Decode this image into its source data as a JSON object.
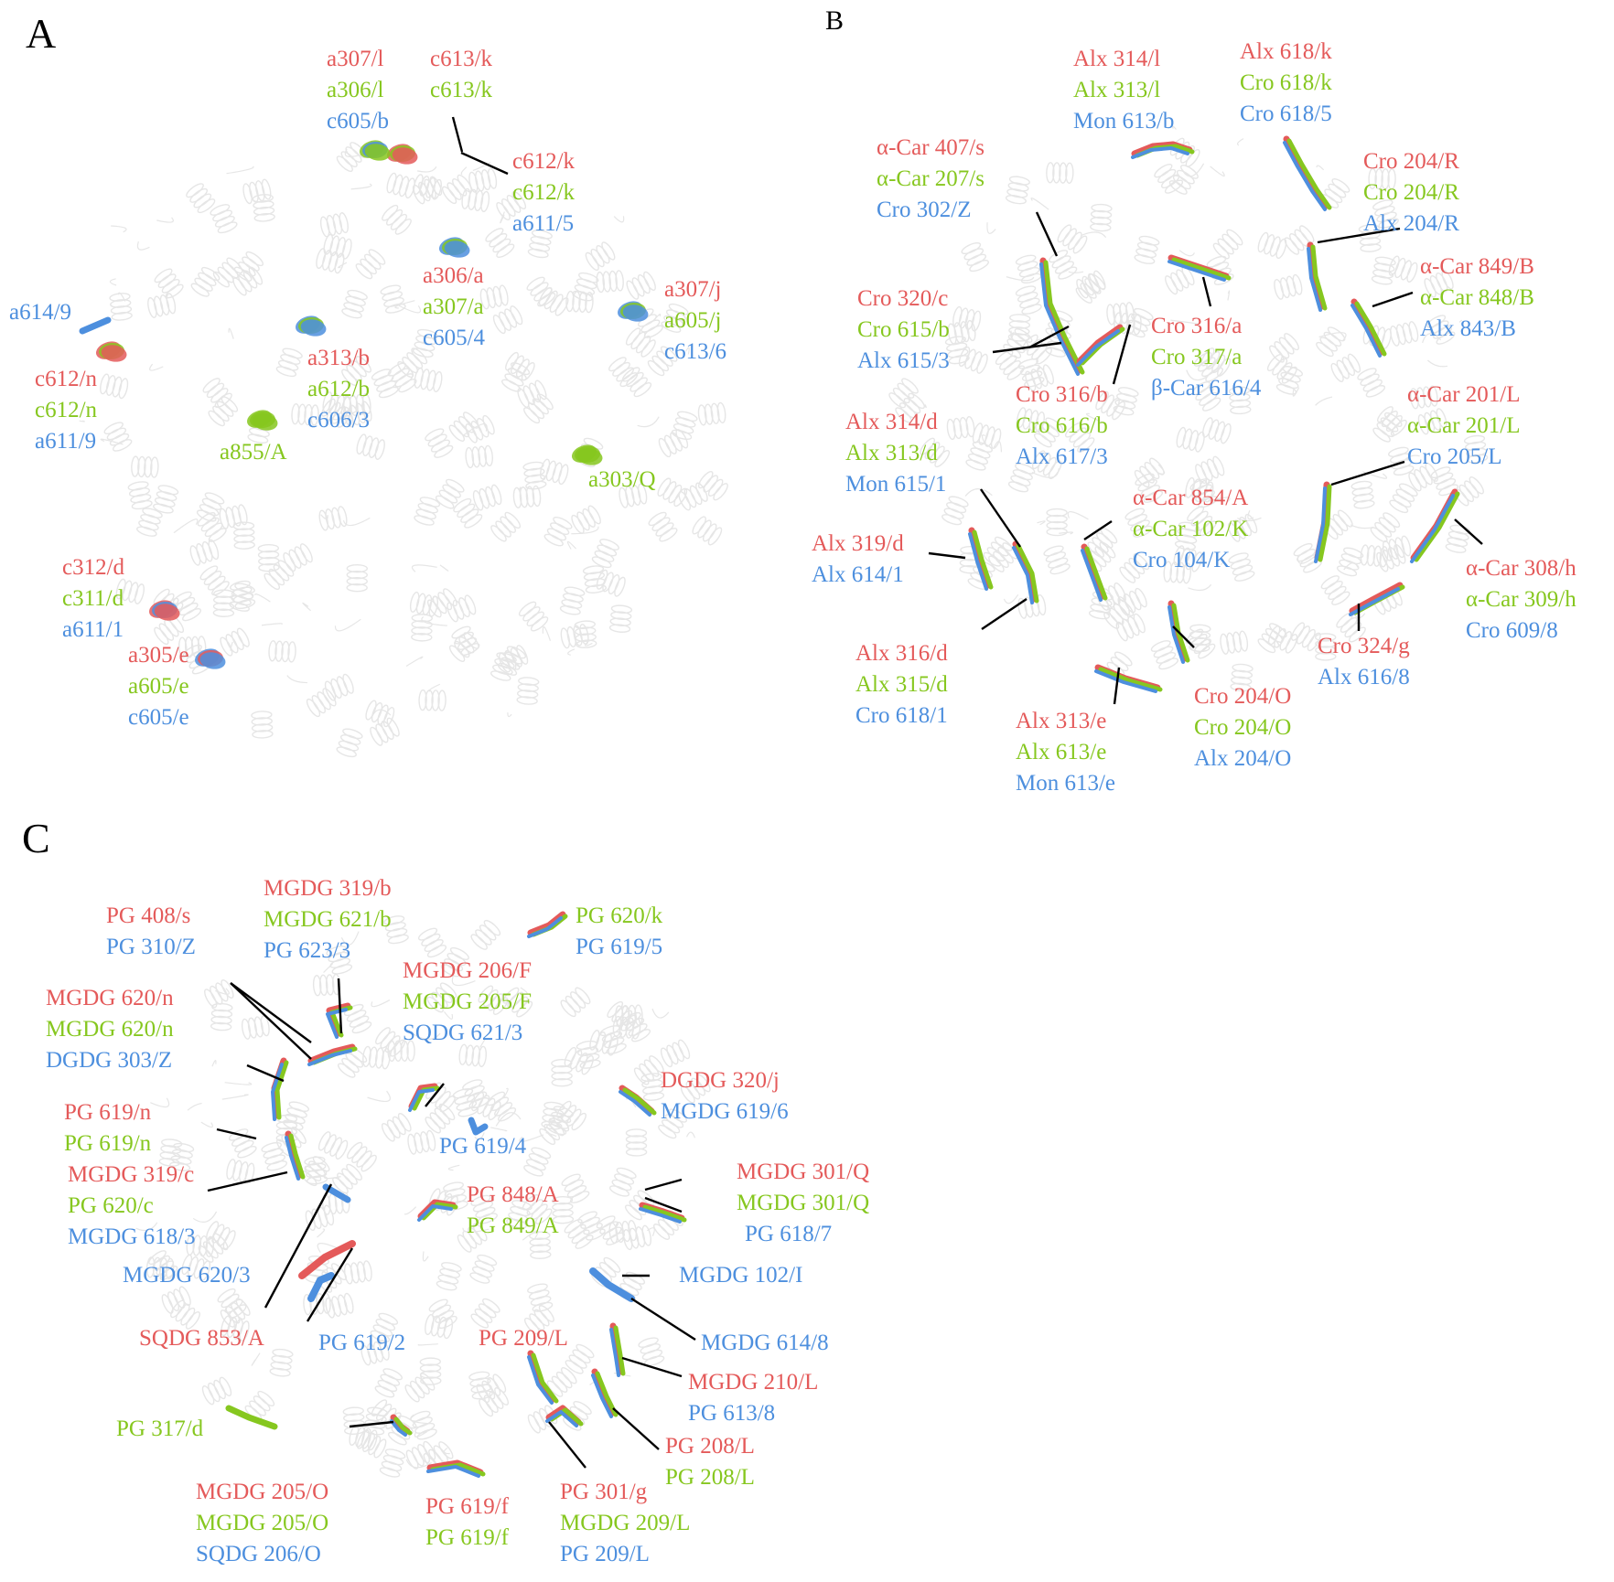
{
  "colors": {
    "red": "#e45a5a",
    "green": "#86c71f",
    "blue": "#4d8fde",
    "leader": "#000000",
    "background_structure": "#e6e6e6"
  },
  "panels": {
    "A": {
      "letter": "A",
      "labels": [
        {
          "id": "A1",
          "lines": [
            {
              "c": "r",
              "t": "a307/l"
            },
            {
              "c": "g",
              "t": "a306/l"
            },
            {
              "c": "b",
              "t": "c605/b"
            }
          ]
        },
        {
          "id": "A2",
          "lines": [
            {
              "c": "r",
              "t": "c613/k"
            },
            {
              "c": "g",
              "t": "c613/k"
            }
          ]
        },
        {
          "id": "A3",
          "lines": [
            {
              "c": "r",
              "t": "c612/k"
            },
            {
              "c": "g",
              "t": "c612/k"
            },
            {
              "c": "b",
              "t": "a611/5"
            }
          ]
        },
        {
          "id": "A4",
          "lines": [
            {
              "c": "r",
              "t": "a306/a"
            },
            {
              "c": "g",
              "t": "a307/a"
            },
            {
              "c": "b",
              "t": "c605/4"
            }
          ]
        },
        {
          "id": "A5",
          "lines": [
            {
              "c": "r",
              "t": "a307/j"
            },
            {
              "c": "g",
              "t": "a605/j"
            },
            {
              "c": "b",
              "t": "c613/6"
            }
          ]
        },
        {
          "id": "A6",
          "lines": [
            {
              "c": "b",
              "t": "a614/9"
            }
          ]
        },
        {
          "id": "A7",
          "lines": [
            {
              "c": "r",
              "t": "c612/n"
            },
            {
              "c": "g",
              "t": "c612/n"
            },
            {
              "c": "b",
              "t": "a611/9"
            }
          ]
        },
        {
          "id": "A8",
          "lines": [
            {
              "c": "r",
              "t": "a313/b"
            },
            {
              "c": "g",
              "t": "a612/b"
            },
            {
              "c": "b",
              "t": "c606/3"
            }
          ]
        },
        {
          "id": "A9",
          "lines": [
            {
              "c": "g",
              "t": "a855/A"
            }
          ]
        },
        {
          "id": "A10",
          "lines": [
            {
              "c": "g",
              "t": "a303/Q"
            }
          ]
        },
        {
          "id": "A11",
          "lines": [
            {
              "c": "r",
              "t": "c312/d"
            },
            {
              "c": "g",
              "t": "c311/d"
            },
            {
              "c": "b",
              "t": "a611/1"
            }
          ]
        },
        {
          "id": "A12",
          "lines": [
            {
              "c": "r",
              "t": "a305/e"
            },
            {
              "c": "g",
              "t": "a605/e"
            },
            {
              "c": "b",
              "t": "c605/e"
            }
          ]
        }
      ]
    },
    "B": {
      "letter": "B",
      "labels": [
        {
          "id": "B1",
          "lines": [
            {
              "c": "r",
              "t": "Alx 314/l"
            },
            {
              "c": "g",
              "t": "Alx 313/l"
            },
            {
              "c": "b",
              "t": "Mon 613/b"
            }
          ]
        },
        {
          "id": "B2",
          "lines": [
            {
              "c": "r",
              "t": "Alx 618/k"
            },
            {
              "c": "g",
              "t": "Cro 618/k"
            },
            {
              "c": "b",
              "t": "Cro 618/5"
            }
          ]
        },
        {
          "id": "B3",
          "lines": [
            {
              "c": "r",
              "t": "α-Car 407/s"
            },
            {
              "c": "g",
              "t": "α-Car 207/s"
            },
            {
              "c": "b",
              "t": "Cro 302/Z"
            }
          ]
        },
        {
          "id": "B4",
          "lines": [
            {
              "c": "r",
              "t": "Cro 204/R"
            },
            {
              "c": "g",
              "t": "Cro 204/R"
            },
            {
              "c": "b",
              "t": "Alx 204/R"
            }
          ]
        },
        {
          "id": "B5",
          "lines": [
            {
              "c": "r",
              "t": "Cro 320/c"
            },
            {
              "c": "g",
              "t": "Cro 615/b"
            },
            {
              "c": "b",
              "t": "Alx 615/3"
            }
          ]
        },
        {
          "id": "B6",
          "lines": [
            {
              "c": "r",
              "t": "α-Car 849/B"
            },
            {
              "c": "g",
              "t": "α-Car 848/B"
            },
            {
              "c": "b",
              "t": "Alx 843/B"
            }
          ]
        },
        {
          "id": "B7",
          "lines": [
            {
              "c": "r",
              "t": "Cro 316/a"
            },
            {
              "c": "g",
              "t": "Cro 317/a"
            },
            {
              "c": "b",
              "t": "β-Car 616/4"
            }
          ]
        },
        {
          "id": "B8",
          "lines": [
            {
              "c": "r",
              "t": "Cro 316/b"
            },
            {
              "c": "g",
              "t": "Cro 616/b"
            },
            {
              "c": "b",
              "t": "Alx 617/3"
            }
          ]
        },
        {
          "id": "B9",
          "lines": [
            {
              "c": "r",
              "t": "Alx 314/d"
            },
            {
              "c": "g",
              "t": "Alx 313/d"
            },
            {
              "c": "b",
              "t": "Mon 615/1"
            }
          ]
        },
        {
          "id": "B10",
          "lines": [
            {
              "c": "r",
              "t": "α-Car 201/L"
            },
            {
              "c": "g",
              "t": "α-Car 201/L"
            },
            {
              "c": "b",
              "t": "Cro 205/L"
            }
          ]
        },
        {
          "id": "B11",
          "lines": [
            {
              "c": "r",
              "t": "α-Car 854/A"
            },
            {
              "c": "g",
              "t": "α-Car 102/K"
            },
            {
              "c": "b",
              "t": "Cro 104/K"
            }
          ]
        },
        {
          "id": "B12",
          "lines": [
            {
              "c": "r",
              "t": "Alx 319/d"
            },
            {
              "c": "b",
              "t": "Alx 614/1"
            }
          ]
        },
        {
          "id": "B13",
          "lines": [
            {
              "c": "r",
              "t": "α-Car 308/h"
            },
            {
              "c": "g",
              "t": "α-Car 309/h"
            },
            {
              "c": "b",
              "t": "Cro 609/8"
            }
          ]
        },
        {
          "id": "B14",
          "lines": [
            {
              "c": "r",
              "t": "Cro 324/g"
            },
            {
              "c": "b",
              "t": "Alx 616/8"
            }
          ]
        },
        {
          "id": "B15",
          "lines": [
            {
              "c": "r",
              "t": "Alx 316/d"
            },
            {
              "c": "g",
              "t": "Alx 315/d"
            },
            {
              "c": "b",
              "t": "Cro 618/1"
            }
          ]
        },
        {
          "id": "B16",
          "lines": [
            {
              "c": "r",
              "t": "Cro 204/O"
            },
            {
              "c": "g",
              "t": "Cro 204/O"
            },
            {
              "c": "b",
              "t": "Alx 204/O"
            }
          ]
        },
        {
          "id": "B17",
          "lines": [
            {
              "c": "r",
              "t": "Alx 313/e"
            },
            {
              "c": "g",
              "t": "Alx 613/e"
            },
            {
              "c": "b",
              "t": "Mon 613/e"
            }
          ]
        }
      ]
    },
    "C": {
      "letter": "C",
      "labels": [
        {
          "id": "C1",
          "lines": [
            {
              "c": "r",
              "t": "MGDG 319/b"
            },
            {
              "c": "g",
              "t": "MGDG 621/b"
            },
            {
              "c": "b",
              "t": "PG 623/3"
            }
          ]
        },
        {
          "id": "C2",
          "lines": [
            {
              "c": "r",
              "t": "PG 408/s"
            },
            {
              "c": "b",
              "t": "PG 310/Z"
            }
          ]
        },
        {
          "id": "C3",
          "lines": [
            {
              "c": "g",
              "t": "PG 620/k"
            },
            {
              "c": "b",
              "t": "PG 619/5"
            }
          ]
        },
        {
          "id": "C4",
          "lines": [
            {
              "c": "r",
              "t": "MGDG 206/F"
            },
            {
              "c": "g",
              "t": "MGDG 205/F"
            },
            {
              "c": "b",
              "t": "SQDG 621/3"
            }
          ]
        },
        {
          "id": "C5",
          "lines": [
            {
              "c": "r",
              "t": "MGDG 620/n"
            },
            {
              "c": "g",
              "t": "MGDG 620/n"
            },
            {
              "c": "b",
              "t": "DGDG 303/Z"
            }
          ]
        },
        {
          "id": "C6",
          "lines": [
            {
              "c": "r",
              "t": "DGDG 320/j"
            },
            {
              "c": "b",
              "t": "MGDG 619/6"
            }
          ]
        },
        {
          "id": "C7",
          "lines": [
            {
              "c": "r",
              "t": "PG 619/n"
            },
            {
              "c": "g",
              "t": "PG 619/n"
            }
          ]
        },
        {
          "id": "C8",
          "lines": [
            {
              "c": "b",
              "t": "PG 619/4"
            }
          ]
        },
        {
          "id": "C9",
          "lines": [
            {
              "c": "r",
              "t": "MGDG 319/c"
            },
            {
              "c": "g",
              "t": "PG 620/c"
            },
            {
              "c": "b",
              "t": "MGDG 618/3"
            }
          ]
        },
        {
          "id": "C10",
          "lines": [
            {
              "c": "r",
              "t": "PG 848/A"
            },
            {
              "c": "g",
              "t": "PG 849/A"
            }
          ]
        },
        {
          "id": "C11",
          "lines": [
            {
              "c": "r",
              "t": "MGDG 301/Q"
            },
            {
              "c": "g",
              "t": "MGDG 301/Q"
            }
          ]
        },
        {
          "id": "C12",
          "lines": [
            {
              "c": "b",
              "t": "PG 618/7"
            }
          ]
        },
        {
          "id": "C13",
          "lines": [
            {
              "c": "b",
              "t": "MGDG 620/3"
            }
          ]
        },
        {
          "id": "C14",
          "lines": [
            {
              "c": "b",
              "t": "MGDG 102/I"
            }
          ]
        },
        {
          "id": "C15",
          "lines": [
            {
              "c": "r",
              "t": "SQDG 853/A"
            }
          ]
        },
        {
          "id": "C16",
          "lines": [
            {
              "c": "b",
              "t": "PG 619/2"
            }
          ]
        },
        {
          "id": "C17",
          "lines": [
            {
              "c": "r",
              "t": "PG 209/L"
            }
          ]
        },
        {
          "id": "C18",
          "lines": [
            {
              "c": "b",
              "t": "MGDG 614/8"
            }
          ]
        },
        {
          "id": "C19",
          "lines": [
            {
              "c": "r",
              "t": "MGDG 210/L"
            },
            {
              "c": "b",
              "t": "PG 613/8"
            }
          ]
        },
        {
          "id": "C20",
          "lines": [
            {
              "c": "g",
              "t": "PG 317/d"
            }
          ]
        },
        {
          "id": "C21",
          "lines": [
            {
              "c": "r",
              "t": "PG 208/L"
            },
            {
              "c": "g",
              "t": "PG 208/L"
            }
          ]
        },
        {
          "id": "C22",
          "lines": [
            {
              "c": "r",
              "t": "MGDG 205/O"
            },
            {
              "c": "g",
              "t": "MGDG 205/O"
            },
            {
              "c": "b",
              "t": "SQDG 206/O"
            }
          ]
        },
        {
          "id": "C23",
          "lines": [
            {
              "c": "r",
              "t": "PG 619/f"
            },
            {
              "c": "g",
              "t": "PG 619/f"
            }
          ]
        },
        {
          "id": "C24",
          "lines": [
            {
              "c": "r",
              "t": "PG 301/g"
            },
            {
              "c": "g",
              "t": "MGDG 209/L"
            },
            {
              "c": "b",
              "t": "PG 209/L"
            }
          ]
        }
      ]
    }
  }
}
